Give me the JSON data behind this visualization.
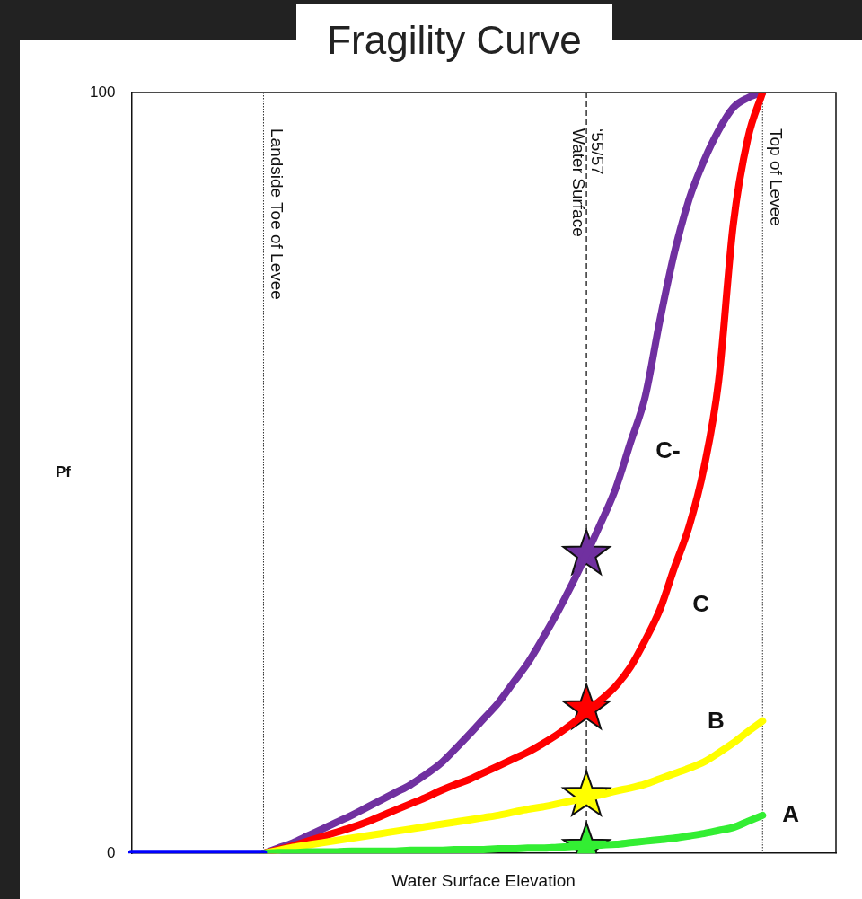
{
  "chart_data": {
    "type": "line",
    "title": "Fragility Curve",
    "xlabel": "Water Surface Elevation",
    "ylabel": "Pf",
    "categories": [
      null,
      null,
      null,
      null,
      null,
      null,
      null,
      null,
      null,
      null,
      null,
      null,
      null,
      null,
      null,
      null,
      null,
      null,
      null,
      null,
      null,
      null,
      null,
      null,
      null,
      null,
      null,
      null,
      null,
      null,
      null,
      null,
      null,
      null,
      null,
      null,
      null,
      null,
      null,
      null,
      null,
      null,
      null,
      null,
      null,
      null,
      null,
      null,
      null
    ],
    "ylim": [
      0,
      100
    ],
    "yticks": [
      0,
      100
    ],
    "grid": false,
    "legend": false,
    "tick_labels": "y",
    "line_style": "solid",
    "series": [
      {
        "color": "#0000ff",
        "values": [
          0,
          0,
          0,
          0,
          0,
          0,
          0,
          0,
          0,
          0,
          null,
          null,
          null,
          null,
          null,
          null,
          null,
          null,
          null,
          null,
          null,
          null,
          null,
          null,
          null,
          null,
          null,
          null,
          null,
          null,
          null,
          null,
          null,
          null,
          null,
          null,
          null,
          null,
          null,
          null,
          null,
          null,
          null,
          null,
          null,
          null,
          null,
          null,
          null
        ]
      },
      {
        "name": "A",
        "color": "#33ee33",
        "values": [
          null,
          null,
          null,
          null,
          null,
          null,
          null,
          null,
          null,
          0,
          0.1,
          0.1,
          0.2,
          0.2,
          0.2,
          0.3,
          0.3,
          0.3,
          0.3,
          0.4,
          0.4,
          0.4,
          0.5,
          0.5,
          0.5,
          0.6,
          0.6,
          0.7,
          0.7,
          0.8,
          0.9,
          1,
          1.1,
          1.2,
          1.4,
          1.6,
          1.8,
          2,
          2.3,
          2.6,
          3,
          3.4,
          4.2,
          5,
          null,
          null,
          null,
          null,
          null
        ]
      },
      {
        "name": "B",
        "color": "#ffff00",
        "values": [
          null,
          null,
          null,
          null,
          null,
          null,
          null,
          null,
          null,
          0,
          0.4,
          0.8,
          1.1,
          1.4,
          1.7,
          2,
          2.3,
          2.6,
          2.9,
          3.2,
          3.5,
          3.8,
          4.1,
          4.4,
          4.7,
          5,
          5.4,
          5.8,
          6.1,
          6.5,
          6.9,
          7.3,
          7.7,
          8.2,
          8.6,
          9.1,
          9.8,
          10.5,
          11.2,
          12,
          13.2,
          14.5,
          16,
          17.4,
          null,
          null,
          null,
          null,
          null
        ]
      },
      {
        "name": "C",
        "color": "#ff0000",
        "values": [
          null,
          null,
          null,
          null,
          null,
          null,
          null,
          null,
          null,
          0,
          0.5,
          1,
          1.6,
          2.2,
          2.8,
          3.4,
          4.1,
          4.9,
          5.7,
          6.5,
          7.3,
          8.2,
          9,
          9.7,
          10.6,
          11.5,
          12.4,
          13.3,
          14.4,
          15.6,
          17,
          18.6,
          20.2,
          22,
          24.5,
          28,
          32,
          37.6,
          43,
          50.6,
          62,
          82.6,
          94,
          100,
          null,
          null,
          null,
          null,
          null
        ]
      },
      {
        "name": "C-",
        "color": "#7030a0",
        "values": [
          null,
          null,
          null,
          null,
          null,
          null,
          null,
          null,
          null,
          0,
          0.7,
          1.4,
          2.3,
          3.2,
          4.1,
          5,
          6,
          7,
          8,
          9,
          10.3,
          11.7,
          13.6,
          15.6,
          17.7,
          19.8,
          22.4,
          25,
          28.2,
          31.6,
          35.3,
          39.3,
          43.5,
          48,
          54,
          60,
          70,
          79,
          86,
          91,
          95,
          98,
          99.3,
          100,
          null,
          null,
          null,
          null,
          null
        ]
      },
      {
        "type": "scatter",
        "marker": "star",
        "color": "#33ee33",
        "values": [
          null,
          null,
          null,
          null,
          null,
          null,
          null,
          null,
          null,
          null,
          null,
          null,
          null,
          null,
          null,
          null,
          null,
          null,
          null,
          null,
          null,
          null,
          null,
          null,
          null,
          null,
          null,
          null,
          null,
          null,
          null,
          0.8,
          null,
          null,
          null,
          null,
          null,
          null,
          null,
          null,
          null,
          null,
          null,
          null,
          null,
          null,
          null,
          null,
          null
        ]
      },
      {
        "type": "scatter",
        "marker": "star",
        "color": "#ffff00",
        "values": [
          null,
          null,
          null,
          null,
          null,
          null,
          null,
          null,
          null,
          null,
          null,
          null,
          null,
          null,
          null,
          null,
          null,
          null,
          null,
          null,
          null,
          null,
          null,
          null,
          null,
          null,
          null,
          null,
          null,
          null,
          null,
          7.6,
          null,
          null,
          null,
          null,
          null,
          null,
          null,
          null,
          null,
          null,
          null,
          null,
          null,
          null,
          null,
          null,
          null
        ]
      },
      {
        "type": "scatter",
        "marker": "star",
        "color": "#ff0000",
        "values": [
          null,
          null,
          null,
          null,
          null,
          null,
          null,
          null,
          null,
          null,
          null,
          null,
          null,
          null,
          null,
          null,
          null,
          null,
          null,
          null,
          null,
          null,
          null,
          null,
          null,
          null,
          null,
          null,
          null,
          null,
          null,
          19,
          null,
          null,
          null,
          null,
          null,
          null,
          null,
          null,
          null,
          null,
          null,
          null,
          null,
          null,
          null,
          null,
          null
        ]
      },
      {
        "type": "scatter",
        "marker": "star",
        "color": "#7030a0",
        "values": [
          null,
          null,
          null,
          null,
          null,
          null,
          null,
          null,
          null,
          null,
          null,
          null,
          null,
          null,
          null,
          null,
          null,
          null,
          null,
          null,
          null,
          null,
          null,
          null,
          null,
          null,
          null,
          null,
          null,
          null,
          null,
          39.3,
          null,
          null,
          null,
          null,
          null,
          null,
          null,
          null,
          null,
          null,
          null,
          null,
          null,
          null,
          null,
          null,
          null
        ]
      }
    ],
    "annotations": [
      "Landside Toe of Levee",
      "‘55/57\nWater Surface",
      "Top of Levee"
    ]
  }
}
